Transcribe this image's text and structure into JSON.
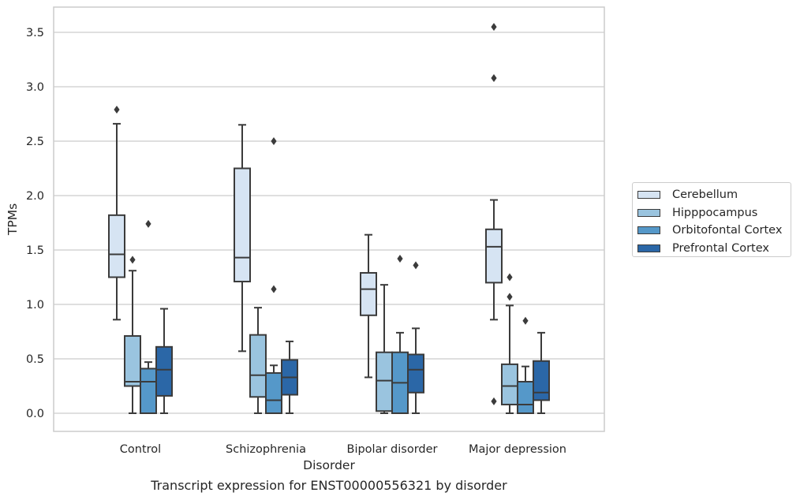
{
  "chart_data": {
    "type": "box",
    "xlabel": "Disorder",
    "ylabel": "TPMs",
    "caption": "Transcript expression for ENST00000556321 by disorder",
    "categories": [
      "Control",
      "Schizophrenia",
      "Bipolar disorder",
      "Major depression"
    ],
    "ylim": [
      -0.17,
      3.7
    ],
    "yticks": [
      "0.0",
      "0.5",
      "1.0",
      "1.5",
      "2.0",
      "2.5",
      "3.0",
      "3.5"
    ],
    "grid": "horizontal",
    "legend_position": "right",
    "series": [
      {
        "name": "Cerebellum",
        "color": "#d6e4f3",
        "boxes": [
          {
            "whisker_low": 0.86,
            "q1": 1.25,
            "median": 1.46,
            "q3": 1.82,
            "whisker_high": 2.66,
            "outliers": [
              2.79
            ]
          },
          {
            "whisker_low": 0.57,
            "q1": 1.21,
            "median": 1.43,
            "q3": 2.25,
            "whisker_high": 2.65,
            "outliers": []
          },
          {
            "whisker_low": 0.33,
            "q1": 0.9,
            "median": 1.14,
            "q3": 1.29,
            "whisker_high": 1.64,
            "outliers": []
          },
          {
            "whisker_low": 0.86,
            "q1": 1.2,
            "median": 1.53,
            "q3": 1.69,
            "whisker_high": 1.96,
            "outliers": [
              3.55,
              3.08,
              0.11
            ]
          }
        ]
      },
      {
        "name": "Hipppocampus",
        "color": "#9ac4df",
        "boxes": [
          {
            "whisker_low": 0.0,
            "q1": 0.25,
            "median": 0.29,
            "q3": 0.71,
            "whisker_high": 1.31,
            "outliers": [
              1.41
            ]
          },
          {
            "whisker_low": 0.0,
            "q1": 0.15,
            "median": 0.35,
            "q3": 0.72,
            "whisker_high": 0.97,
            "outliers": []
          },
          {
            "whisker_low": 0.0,
            "q1": 0.02,
            "median": 0.3,
            "q3": 0.56,
            "whisker_high": 1.18,
            "outliers": []
          },
          {
            "whisker_low": 0.0,
            "q1": 0.08,
            "median": 0.25,
            "q3": 0.45,
            "whisker_high": 0.99,
            "outliers": [
              1.25,
              1.07
            ]
          }
        ]
      },
      {
        "name": "Orbitofontal Cortex",
        "color": "#5598c9",
        "boxes": [
          {
            "whisker_low": 0.0,
            "q1": 0.0,
            "median": 0.29,
            "q3": 0.41,
            "whisker_high": 0.47,
            "outliers": [
              1.74
            ]
          },
          {
            "whisker_low": 0.0,
            "q1": 0.0,
            "median": 0.12,
            "q3": 0.37,
            "whisker_high": 0.44,
            "outliers": [
              2.5,
              1.14
            ]
          },
          {
            "whisker_low": 0.0,
            "q1": 0.0,
            "median": 0.28,
            "q3": 0.56,
            "whisker_high": 0.74,
            "outliers": [
              1.42
            ]
          },
          {
            "whisker_low": 0.0,
            "q1": 0.0,
            "median": 0.08,
            "q3": 0.29,
            "whisker_high": 0.43,
            "outliers": [
              0.85
            ]
          }
        ]
      },
      {
        "name": "Prefrontal Cortex",
        "color": "#2b67a7",
        "boxes": [
          {
            "whisker_low": 0.0,
            "q1": 0.16,
            "median": 0.4,
            "q3": 0.61,
            "whisker_high": 0.96,
            "outliers": []
          },
          {
            "whisker_low": 0.0,
            "q1": 0.17,
            "median": 0.33,
            "q3": 0.49,
            "whisker_high": 0.66,
            "outliers": []
          },
          {
            "whisker_low": 0.0,
            "q1": 0.19,
            "median": 0.4,
            "q3": 0.54,
            "whisker_high": 0.78,
            "outliers": [
              1.36
            ]
          },
          {
            "whisker_low": 0.0,
            "q1": 0.12,
            "median": 0.19,
            "q3": 0.48,
            "whisker_high": 0.74,
            "outliers": []
          }
        ]
      }
    ]
  }
}
